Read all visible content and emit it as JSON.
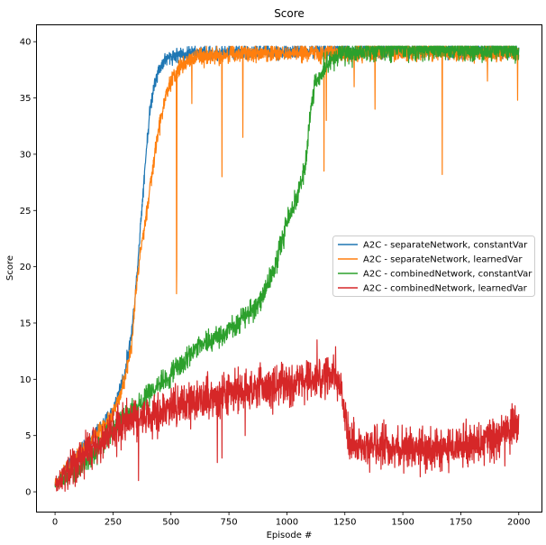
{
  "chart_data": {
    "type": "line",
    "title": "Score",
    "xlabel": "Episode #",
    "ylabel": "Score",
    "xlim": [
      -80,
      2100
    ],
    "ylim": [
      -1.8,
      41.5
    ],
    "xticks": [
      0,
      250,
      500,
      750,
      1000,
      1250,
      1500,
      1750,
      2000
    ],
    "yticks": [
      0,
      5,
      10,
      15,
      20,
      25,
      30,
      35,
      40
    ],
    "grid": false,
    "legend_position": "center-right",
    "series": [
      {
        "name": "A2C - separateNetwork, constantVar",
        "color": "#1f77b4",
        "noise": 0.45,
        "x": [
          0,
          50,
          100,
          150,
          200,
          250,
          300,
          330,
          350,
          370,
          390,
          410,
          430,
          450,
          470,
          500,
          550,
          600,
          700,
          800,
          900,
          1000,
          1200,
          1400,
          1600,
          1800,
          2000
        ],
        "y": [
          0.8,
          2.0,
          3.2,
          4.5,
          5.8,
          7.2,
          10.5,
          14.0,
          18.5,
          24.0,
          29.5,
          34.0,
          36.5,
          37.6,
          38.3,
          38.7,
          38.9,
          39.0,
          39.0,
          39.1,
          39.1,
          39.1,
          39.2,
          39.2,
          39.2,
          39.2,
          39.2
        ]
      },
      {
        "name": "A2C - separateNetwork, learnedVar",
        "color": "#ff7f0e",
        "noise": 0.55,
        "x": [
          0,
          50,
          100,
          150,
          200,
          250,
          300,
          330,
          350,
          370,
          390,
          410,
          430,
          450,
          470,
          490,
          510,
          530,
          560,
          600,
          700,
          800,
          900,
          1000,
          1200,
          1400,
          1600,
          1800,
          2000
        ],
        "y": [
          0.8,
          2.0,
          3.2,
          4.4,
          5.5,
          6.8,
          10.0,
          13.0,
          18.0,
          21.5,
          24.0,
          27.0,
          30.0,
          32.5,
          34.5,
          36.0,
          36.8,
          37.5,
          38.2,
          38.6,
          38.8,
          38.9,
          39.0,
          39.0,
          39.0,
          39.1,
          39.1,
          39.0,
          39.0
        ],
        "dips_x": [
          524,
          525,
          590,
          720,
          810,
          1160,
          1170,
          1290,
          1380,
          1670,
          1865,
          1995
        ],
        "dips_y": [
          17.6,
          20.0,
          34.5,
          28.0,
          31.5,
          28.5,
          33.0,
          36.0,
          34.0,
          28.2,
          36.5,
          34.8
        ]
      },
      {
        "name": "A2C - combinedNetwork, constantVar",
        "color": "#2ca02c",
        "noise": 0.7,
        "x": [
          0,
          50,
          100,
          150,
          200,
          250,
          300,
          350,
          400,
          450,
          500,
          550,
          600,
          650,
          700,
          750,
          800,
          850,
          900,
          950,
          1000,
          1050,
          1080,
          1100,
          1120,
          1150,
          1200,
          1250,
          1300,
          1400,
          1600,
          1800,
          2000
        ],
        "y": [
          0.6,
          1.3,
          2.0,
          3.0,
          4.2,
          5.5,
          6.5,
          7.5,
          8.5,
          9.5,
          10.5,
          11.5,
          12.5,
          13.2,
          13.8,
          14.5,
          15.2,
          16.0,
          17.5,
          20.0,
          24.0,
          26.5,
          29.0,
          33.5,
          36.0,
          37.5,
          38.5,
          38.9,
          39.1,
          39.2,
          39.3,
          39.3,
          39.3
        ]
      },
      {
        "name": "A2C - combinedNetwork, learnedVar",
        "color": "#d62728",
        "noise": 1.3,
        "x": [
          0,
          50,
          100,
          150,
          200,
          250,
          300,
          350,
          400,
          450,
          500,
          550,
          600,
          650,
          700,
          750,
          800,
          850,
          900,
          950,
          1000,
          1050,
          1100,
          1150,
          1200,
          1230,
          1250,
          1270,
          1300,
          1400,
          1500,
          1600,
          1700,
          1800,
          1900,
          1950,
          2000
        ],
        "y": [
          0.5,
          1.8,
          2.8,
          3.8,
          4.5,
          5.5,
          6.0,
          6.5,
          6.5,
          7.0,
          7.5,
          8.0,
          8.0,
          8.3,
          8.5,
          8.8,
          9.0,
          9.2,
          9.3,
          9.3,
          9.5,
          9.8,
          10.0,
          10.0,
          10.2,
          9.5,
          6.5,
          4.5,
          4.0,
          4.0,
          3.8,
          3.8,
          4.0,
          4.3,
          4.5,
          5.5,
          6.0
        ],
        "dips_x": [
          360,
          700,
          720,
          820,
          1130,
          1210,
          1940
        ],
        "dips_y": [
          1.0,
          2.6,
          3.0,
          5.0,
          13.5,
          12.9,
          2.3
        ]
      }
    ]
  }
}
